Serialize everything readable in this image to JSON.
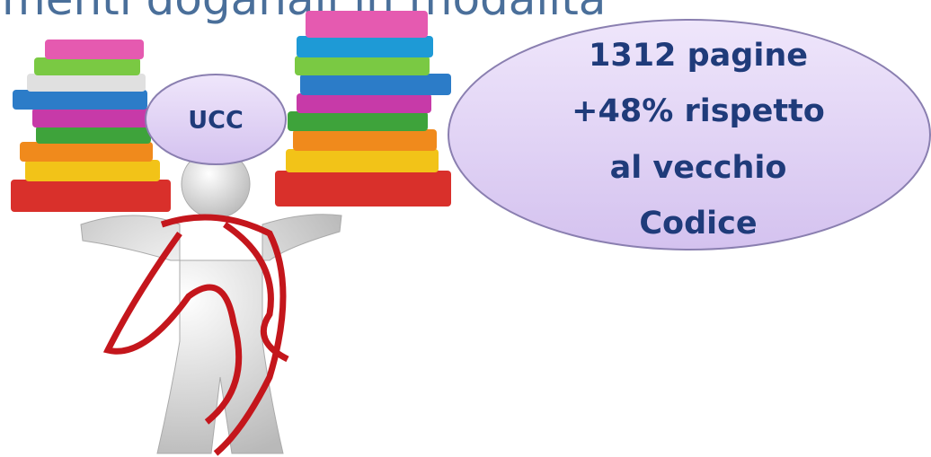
{
  "header": {
    "title": "menti doganali in modalità"
  },
  "bubbles": [
    {
      "lines": [
        "UCC"
      ]
    },
    {
      "lines": [
        "1312 pagine",
        "+48% rispetto",
        "al vecchio",
        "Codice"
      ]
    }
  ]
}
